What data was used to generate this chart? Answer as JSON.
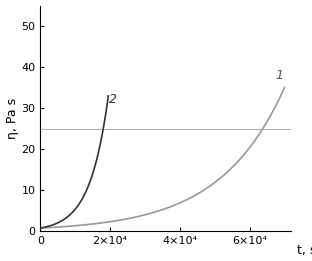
{
  "title": "",
  "xlabel": "t, s",
  "ylabel": "η, Pa s",
  "xlim": [
    0,
    72000
  ],
  "ylim": [
    0,
    55
  ],
  "yticks": [
    0,
    10,
    20,
    30,
    40,
    50
  ],
  "xticks": [
    0,
    20000,
    40000,
    60000
  ],
  "xtick_labels": [
    "0",
    "2×10⁴",
    "4×10⁴",
    "6×10⁴"
  ],
  "hline_y": 25,
  "hline_color": "#b0b0b0",
  "curve1_color": "#999999",
  "curve2_color": "#333333",
  "label1": "1",
  "label2": "2",
  "background_color": "#ffffff",
  "curve1_A": 0.8,
  "curve1_k": 8.8e-05,
  "curve2_A": 0.8,
  "curve2_k": 0.00028,
  "curve1_t_end": 70000,
  "curve2_t_end": 19500
}
